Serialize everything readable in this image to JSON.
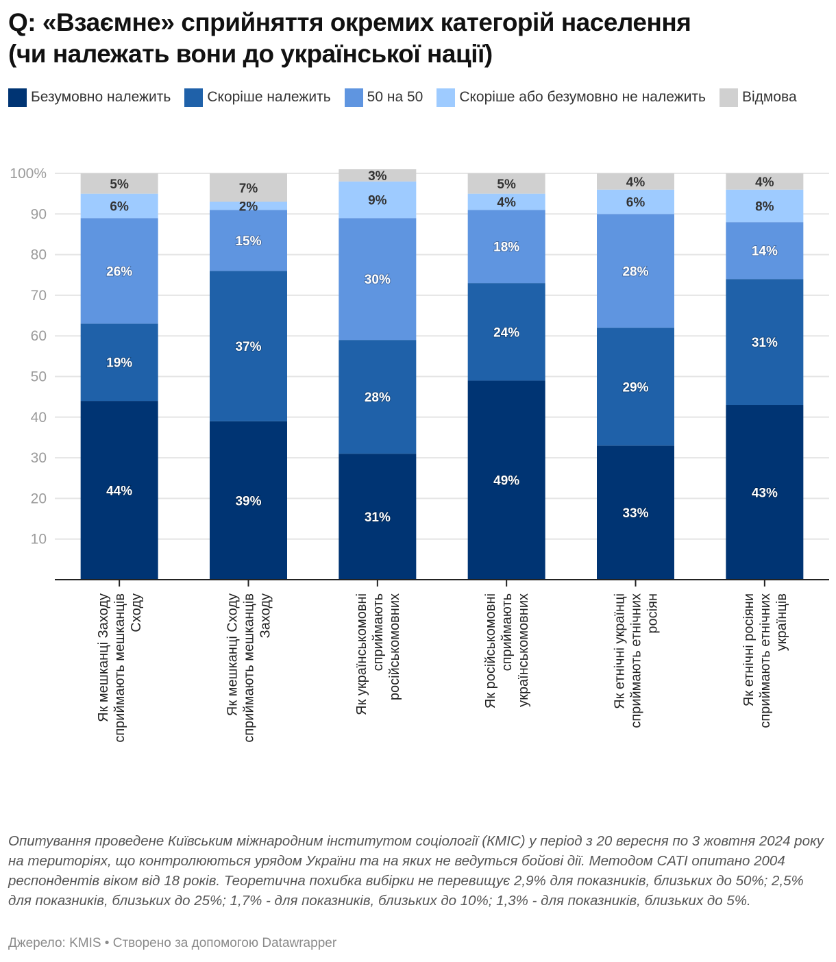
{
  "chart_data": {
    "type": "bar",
    "stacked": true,
    "orientation": "vertical",
    "title": "Q: «Взаємне» сприйняття окремих категорій населення (чи належать вони до української нації)",
    "xlabel": "",
    "ylabel": "",
    "ylim": [
      0,
      100
    ],
    "yticks": [
      10,
      20,
      30,
      40,
      50,
      60,
      70,
      80,
      90,
      100
    ],
    "ytick_labels": [
      "10",
      "20",
      "30",
      "40",
      "50",
      "60",
      "70",
      "80",
      "90",
      "100%"
    ],
    "grid": true,
    "legend_position": "top",
    "categories": [
      "Як мешканці Заходу сприймають мешканців Сходу",
      "Як мешканці Сходу сприймають мешканців Заходу",
      "Як україномовні сприймають російськомовних",
      "Як російськомовні сприймають україномовних",
      "Як етнічні українці сприймають етнічних росіян",
      "Як етнічні росіяни сприймають етнічних українців"
    ],
    "category_lines": [
      [
        "Як мешканці Заходу",
        "сприймають мешканців",
        "Сходу"
      ],
      [
        "Як мешканці Сходу",
        "сприймають мешканців",
        "Заходу"
      ],
      [
        "Як українськомовні",
        "сприймають",
        "російськомовних"
      ],
      [
        "Як російськомовні",
        "сприймають",
        "українськомовних"
      ],
      [
        "Як етнічні українці",
        "сприймають етнічних",
        "росіян"
      ],
      [
        "Як етнічні росіяни",
        "сприймають етнічних",
        "українців"
      ]
    ],
    "series": [
      {
        "name": "Безумовно належить",
        "color": "#003473",
        "label_color": "#ffffff",
        "values": [
          44,
          39,
          31,
          49,
          33,
          43
        ]
      },
      {
        "name": "Скоріше належить",
        "color": "#1f61a9",
        "label_color": "#ffffff",
        "values": [
          19,
          37,
          28,
          24,
          29,
          31
        ]
      },
      {
        "name": "50 на 50",
        "color": "#5f95e0",
        "label_color": "#ffffff",
        "values": [
          26,
          15,
          30,
          18,
          28,
          14
        ]
      },
      {
        "name": "Скоріше або безумовно не належить",
        "color": "#9ecbff",
        "label_color": "#333333",
        "values": [
          6,
          2,
          9,
          4,
          6,
          8
        ]
      },
      {
        "name": "Відмова",
        "color": "#d0d0d0",
        "label_color": "#333333",
        "values": [
          5,
          7,
          3,
          5,
          4,
          4
        ]
      }
    ],
    "value_suffix": "%"
  },
  "header": {
    "title_line1": "Q: «Взаємне» сприйняття окремих категорій населення",
    "title_line2": "(чи належать вони до української нації)"
  },
  "footer": {
    "notes": "Опитування проведене Київським міжнародним інститутом соціології (КМІС) у період з 20 вересня по 3 жовтня 2024 року на територіях, що контролюються урядом України та на яких не ведуться бойові дії. Методом CATI опитано 2004 респондентів віком від 18 років. Теоретична похибка вибірки не перевищує 2,9% для показників, близьких до 50%; 2,5% для показників, близьких до 25%; 1,7% - для показників, близьких до 10%; 1,3% - для показників, близьких до 5%.",
    "source": "Джерело: KMIS • Створено за допомогою Datawrapper"
  }
}
